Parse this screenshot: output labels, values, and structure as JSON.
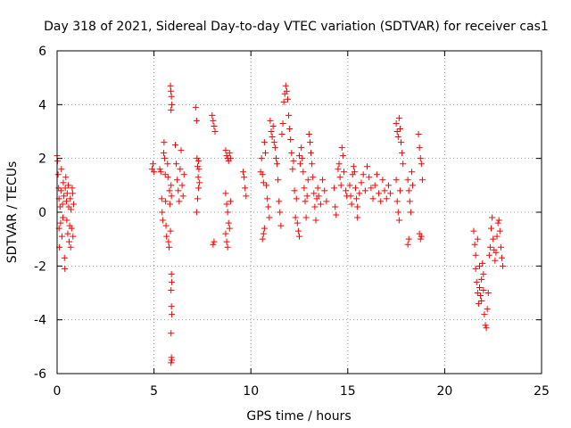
{
  "chart_data": {
    "type": "scatter",
    "title": "Day 318 of 2021, Sidereal Day-to-day VTEC variation (SDTVAR) for receiver cas1",
    "xlabel": "GPS time / hours",
    "ylabel": "SDTVAR / TECUs",
    "xlim": [
      0,
      25
    ],
    "ylim": [
      -6,
      6
    ],
    "xticks": [
      0,
      5,
      10,
      15,
      20,
      25
    ],
    "yticks": [
      -6,
      -4,
      -2,
      0,
      2,
      4,
      6
    ],
    "grid": true,
    "marker": "+",
    "color": "#ff0000",
    "series": [
      {
        "name": "SDTVAR",
        "points": [
          [
            0.0,
            2.1
          ],
          [
            0.02,
            1.9
          ],
          [
            0.05,
            1.4
          ],
          [
            0.08,
            0.9
          ],
          [
            0.1,
            0.5
          ],
          [
            0.1,
            -0.6
          ],
          [
            0.12,
            -1.3
          ],
          [
            0.15,
            0.2
          ],
          [
            0.18,
            -0.4
          ],
          [
            0.2,
            0.8
          ],
          [
            0.22,
            1.6
          ],
          [
            0.25,
            -0.9
          ],
          [
            0.28,
            0.3
          ],
          [
            0.3,
            -0.2
          ],
          [
            0.32,
            1.1
          ],
          [
            0.35,
            0.6
          ],
          [
            0.38,
            -1.7
          ],
          [
            0.4,
            -2.1
          ],
          [
            0.42,
            0.9
          ],
          [
            0.45,
            1.3
          ],
          [
            0.48,
            0.4
          ],
          [
            0.5,
            -0.3
          ],
          [
            0.52,
            0.7
          ],
          [
            0.55,
            -0.8
          ],
          [
            0.58,
            1.0
          ],
          [
            0.6,
            0.2
          ],
          [
            0.62,
            -1.1
          ],
          [
            0.65,
            -0.5
          ],
          [
            0.68,
            0.5
          ],
          [
            0.7,
            -1.3
          ],
          [
            0.72,
            0.1
          ],
          [
            0.75,
            -0.6
          ],
          [
            0.78,
            0.9
          ],
          [
            0.8,
            0.7
          ],
          [
            0.82,
            -0.9
          ],
          [
            0.85,
            0.3
          ],
          [
            4.9,
            1.6
          ],
          [
            4.95,
            1.8
          ],
          [
            5.0,
            1.5
          ],
          [
            5.3,
            1.6
          ],
          [
            5.35,
            1.5
          ],
          [
            5.4,
            0.5
          ],
          [
            5.42,
            0.0
          ],
          [
            5.45,
            -0.3
          ],
          [
            5.5,
            2.2
          ],
          [
            5.52,
            2.6
          ],
          [
            5.55,
            2.0
          ],
          [
            5.58,
            1.4
          ],
          [
            5.6,
            0.4
          ],
          [
            5.62,
            -0.5
          ],
          [
            5.65,
            -0.9
          ],
          [
            5.7,
            1.8
          ],
          [
            5.72,
            1.3
          ],
          [
            5.75,
            -1.1
          ],
          [
            5.78,
            -1.3
          ],
          [
            5.8,
            0.8
          ],
          [
            5.82,
            0.3
          ],
          [
            5.85,
            -0.7
          ],
          [
            5.88,
            1.0
          ],
          [
            5.9,
            0.6
          ],
          [
            5.85,
            4.7
          ],
          [
            5.87,
            4.5
          ],
          [
            5.9,
            4.3
          ],
          [
            5.92,
            4.0
          ],
          [
            5.88,
            3.8
          ],
          [
            5.9,
            -2.3
          ],
          [
            5.92,
            -2.6
          ],
          [
            5.88,
            -2.9
          ],
          [
            5.9,
            -3.5
          ],
          [
            5.92,
            -3.8
          ],
          [
            5.88,
            -4.5
          ],
          [
            5.9,
            -5.4
          ],
          [
            5.92,
            -5.5
          ],
          [
            5.88,
            -5.6
          ],
          [
            6.1,
            2.5
          ],
          [
            6.15,
            1.8
          ],
          [
            6.2,
            1.2
          ],
          [
            6.25,
            0.8
          ],
          [
            6.3,
            0.4
          ],
          [
            6.35,
            1.6
          ],
          [
            6.4,
            2.3
          ],
          [
            6.45,
            1.0
          ],
          [
            6.5,
            0.6
          ],
          [
            6.55,
            1.4
          ],
          [
            7.15,
            3.9
          ],
          [
            7.2,
            3.4
          ],
          [
            7.22,
            2.0
          ],
          [
            7.25,
            1.7
          ],
          [
            7.28,
            1.3
          ],
          [
            7.3,
            0.9
          ],
          [
            7.32,
            1.6
          ],
          [
            7.35,
            1.1
          ],
          [
            7.2,
            0.0
          ],
          [
            7.25,
            0.5
          ],
          [
            7.3,
            1.9
          ],
          [
            8.0,
            3.6
          ],
          [
            8.05,
            3.4
          ],
          [
            8.1,
            3.2
          ],
          [
            8.15,
            3.0
          ],
          [
            8.05,
            -1.2
          ],
          [
            8.1,
            -1.1
          ],
          [
            8.7,
            2.3
          ],
          [
            8.75,
            2.1
          ],
          [
            8.8,
            2.0
          ],
          [
            8.85,
            1.9
          ],
          [
            8.9,
            2.2
          ],
          [
            8.95,
            2.0
          ],
          [
            8.7,
            0.7
          ],
          [
            8.75,
            0.3
          ],
          [
            8.8,
            0.0
          ],
          [
            8.85,
            -0.4
          ],
          [
            8.9,
            -0.6
          ],
          [
            8.95,
            0.4
          ],
          [
            8.75,
            -1.1
          ],
          [
            8.8,
            -1.3
          ],
          [
            8.7,
            -0.8
          ],
          [
            9.6,
            1.5
          ],
          [
            9.65,
            1.3
          ],
          [
            9.7,
            0.9
          ],
          [
            9.75,
            0.6
          ],
          [
            10.5,
            1.5
          ],
          [
            10.55,
            2.0
          ],
          [
            10.6,
            1.4
          ],
          [
            10.65,
            1.1
          ],
          [
            10.7,
            2.6
          ],
          [
            10.75,
            2.2
          ],
          [
            10.8,
            1.0
          ],
          [
            10.85,
            0.5
          ],
          [
            10.9,
            0.2
          ],
          [
            10.95,
            -0.2
          ],
          [
            10.6,
            -1.0
          ],
          [
            10.65,
            -0.8
          ],
          [
            10.7,
            -0.6
          ],
          [
            11.0,
            3.4
          ],
          [
            11.05,
            3.0
          ],
          [
            11.1,
            2.8
          ],
          [
            11.15,
            3.2
          ],
          [
            11.2,
            2.6
          ],
          [
            11.25,
            2.4
          ],
          [
            11.3,
            2.0
          ],
          [
            11.35,
            1.8
          ],
          [
            11.4,
            1.2
          ],
          [
            11.45,
            0.4
          ],
          [
            11.5,
            0.0
          ],
          [
            11.55,
            -0.5
          ],
          [
            11.6,
            2.9
          ],
          [
            11.65,
            3.3
          ],
          [
            11.7,
            4.1
          ],
          [
            11.75,
            4.4
          ],
          [
            11.8,
            4.7
          ],
          [
            11.85,
            4.5
          ],
          [
            11.9,
            4.2
          ],
          [
            11.95,
            3.6
          ],
          [
            12.0,
            3.1
          ],
          [
            12.05,
            2.7
          ],
          [
            12.1,
            2.2
          ],
          [
            12.15,
            1.6
          ],
          [
            12.2,
            1.9
          ],
          [
            12.25,
            0.8
          ],
          [
            12.3,
            -0.2
          ],
          [
            12.35,
            0.5
          ],
          [
            12.4,
            -0.4
          ],
          [
            12.45,
            -0.7
          ],
          [
            12.5,
            -0.9
          ],
          [
            12.5,
            2.1
          ],
          [
            12.55,
            1.8
          ],
          [
            12.6,
            2.4
          ],
          [
            12.65,
            2.0
          ],
          [
            12.7,
            1.5
          ],
          [
            12.75,
            0.9
          ],
          [
            12.8,
            0.4
          ],
          [
            12.85,
            -0.2
          ],
          [
            12.9,
            0.6
          ],
          [
            12.95,
            1.2
          ],
          [
            13.0,
            2.9
          ],
          [
            13.05,
            2.6
          ],
          [
            13.1,
            2.2
          ],
          [
            13.15,
            1.8
          ],
          [
            13.2,
            1.3
          ],
          [
            13.25,
            0.7
          ],
          [
            13.3,
            0.2
          ],
          [
            13.35,
            -0.3
          ],
          [
            13.4,
            0.5
          ],
          [
            13.45,
            0.9
          ],
          [
            13.5,
            0.6
          ],
          [
            13.6,
            0.3
          ],
          [
            13.7,
            1.2
          ],
          [
            13.8,
            0.8
          ],
          [
            13.9,
            0.4
          ],
          [
            14.3,
            0.9
          ],
          [
            14.35,
            0.2
          ],
          [
            14.4,
            -0.1
          ],
          [
            14.5,
            1.6
          ],
          [
            14.55,
            1.8
          ],
          [
            14.6,
            1.3
          ],
          [
            14.65,
            1.0
          ],
          [
            14.7,
            2.4
          ],
          [
            14.75,
            2.1
          ],
          [
            14.8,
            1.5
          ],
          [
            14.9,
            0.8
          ],
          [
            14.95,
            0.6
          ],
          [
            15.1,
            1.0
          ],
          [
            15.15,
            0.6
          ],
          [
            15.2,
            0.3
          ],
          [
            15.25,
            1.4
          ],
          [
            15.3,
            1.7
          ],
          [
            15.35,
            1.5
          ],
          [
            15.4,
            0.9
          ],
          [
            15.45,
            0.5
          ],
          [
            15.5,
            0.2
          ],
          [
            15.5,
            -0.2
          ],
          [
            15.6,
            0.7
          ],
          [
            15.7,
            1.1
          ],
          [
            15.8,
            1.4
          ],
          [
            15.9,
            0.8
          ],
          [
            16.0,
            1.7
          ],
          [
            16.1,
            1.3
          ],
          [
            16.2,
            0.9
          ],
          [
            16.3,
            0.5
          ],
          [
            16.4,
            1.0
          ],
          [
            16.5,
            1.4
          ],
          [
            16.6,
            0.7
          ],
          [
            16.7,
            0.4
          ],
          [
            16.8,
            1.2
          ],
          [
            16.9,
            0.8
          ],
          [
            17.0,
            0.5
          ],
          [
            17.1,
            1.0
          ],
          [
            17.2,
            0.7
          ],
          [
            17.5,
            3.3
          ],
          [
            17.55,
            3.0
          ],
          [
            17.6,
            2.8
          ],
          [
            17.65,
            3.5
          ],
          [
            17.7,
            3.1
          ],
          [
            17.75,
            2.6
          ],
          [
            17.8,
            2.2
          ],
          [
            17.85,
            1.8
          ],
          [
            17.5,
            1.2
          ],
          [
            17.55,
            0.4
          ],
          [
            17.6,
            0.0
          ],
          [
            17.65,
            -0.3
          ],
          [
            17.7,
            0.8
          ],
          [
            18.1,
            1.2
          ],
          [
            18.15,
            0.8
          ],
          [
            18.2,
            0.4
          ],
          [
            18.25,
            0.0
          ],
          [
            18.3,
            1.5
          ],
          [
            18.35,
            1.0
          ],
          [
            18.1,
            -1.2
          ],
          [
            18.15,
            -1.0
          ],
          [
            18.65,
            2.9
          ],
          [
            18.7,
            2.4
          ],
          [
            18.75,
            2.0
          ],
          [
            18.8,
            1.8
          ],
          [
            18.85,
            1.2
          ],
          [
            18.7,
            -0.8
          ],
          [
            18.75,
            -1.0
          ],
          [
            18.8,
            -0.9
          ],
          [
            21.5,
            -0.7
          ],
          [
            21.55,
            -1.2
          ],
          [
            21.6,
            -2.1
          ],
          [
            21.65,
            -2.6
          ],
          [
            21.7,
            -3.0
          ],
          [
            21.75,
            -3.4
          ],
          [
            21.8,
            -2.8
          ],
          [
            21.85,
            -3.1
          ],
          [
            21.9,
            -2.5
          ],
          [
            21.95,
            -1.9
          ],
          [
            22.0,
            -2.3
          ],
          [
            22.05,
            -3.8
          ],
          [
            22.1,
            -4.2
          ],
          [
            22.15,
            -4.3
          ],
          [
            22.2,
            -3.6
          ],
          [
            22.25,
            -3.0
          ],
          [
            22.3,
            -1.6
          ],
          [
            22.35,
            -1.3
          ],
          [
            22.4,
            -0.6
          ],
          [
            22.45,
            -0.2
          ],
          [
            22.5,
            -1.0
          ],
          [
            22.55,
            -1.4
          ],
          [
            22.6,
            -1.8
          ],
          [
            22.65,
            -1.5
          ],
          [
            22.7,
            -0.9
          ],
          [
            22.75,
            -0.4
          ],
          [
            22.8,
            -0.3
          ],
          [
            22.85,
            -0.7
          ],
          [
            22.9,
            -1.3
          ],
          [
            22.95,
            -1.7
          ],
          [
            23.0,
            -2.0
          ],
          [
            21.6,
            -1.6
          ],
          [
            21.7,
            -1.0
          ],
          [
            21.8,
            -2.0
          ],
          [
            21.9,
            -3.3
          ],
          [
            22.0,
            -2.9
          ]
        ]
      }
    ]
  }
}
